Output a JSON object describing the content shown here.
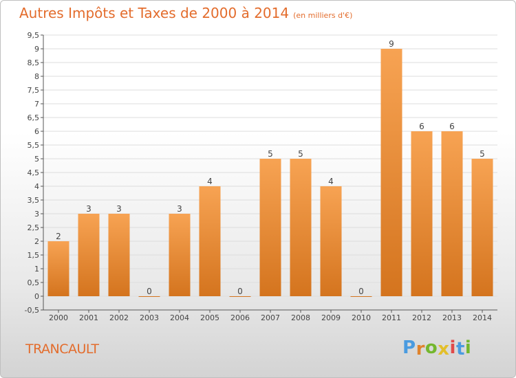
{
  "title": {
    "main": "Autres Impôts et Taxes de 2000 à 2014",
    "unit": "(en milliers d'€)"
  },
  "commune": "TRANCAULT",
  "brand": {
    "letters": [
      "P",
      "r",
      "o",
      "x",
      "i",
      "t",
      "i"
    ],
    "colors": [
      "#4a9be0",
      "#e0832c",
      "#74b72e",
      "#e3bf2a",
      "#e04a4a",
      "#4a9be0",
      "#74b72e"
    ]
  },
  "colors": {
    "title": "#e36c2c",
    "bar_light": "#f7a353",
    "bar_dark": "#d4741e",
    "axis": "#555555",
    "grid": "#dddddd"
  },
  "chart_data": {
    "type": "bar",
    "categories": [
      "2000",
      "2001",
      "2002",
      "2003",
      "2004",
      "2005",
      "2006",
      "2007",
      "2008",
      "2009",
      "2010",
      "2011",
      "2012",
      "2013",
      "2014"
    ],
    "values": [
      2,
      3,
      3,
      0,
      3,
      4,
      0,
      5,
      5,
      4,
      0,
      9,
      6,
      6,
      5
    ],
    "data_labels": [
      "2",
      "3",
      "3",
      "0",
      "3",
      "4",
      "0",
      "5",
      "5",
      "4",
      "0",
      "9",
      "6",
      "6",
      "5"
    ],
    "ylim": [
      -0.5,
      9.5
    ],
    "yticks": [
      "-0,5",
      "0",
      "0,5",
      "1",
      "1,5",
      "2",
      "2,5",
      "3",
      "3,5",
      "4",
      "4,5",
      "5",
      "5,5",
      "6",
      "6,5",
      "7",
      "7,5",
      "8",
      "8,5",
      "9",
      "9,5"
    ],
    "ytick_values": [
      -0.5,
      0,
      0.5,
      1,
      1.5,
      2,
      2.5,
      3,
      3.5,
      4,
      4.5,
      5,
      5.5,
      6,
      6.5,
      7,
      7.5,
      8,
      8.5,
      9,
      9.5
    ],
    "grid": true,
    "title": "Autres Impôts et Taxes de 2000 à 2014",
    "xlabel": "",
    "ylabel": ""
  }
}
